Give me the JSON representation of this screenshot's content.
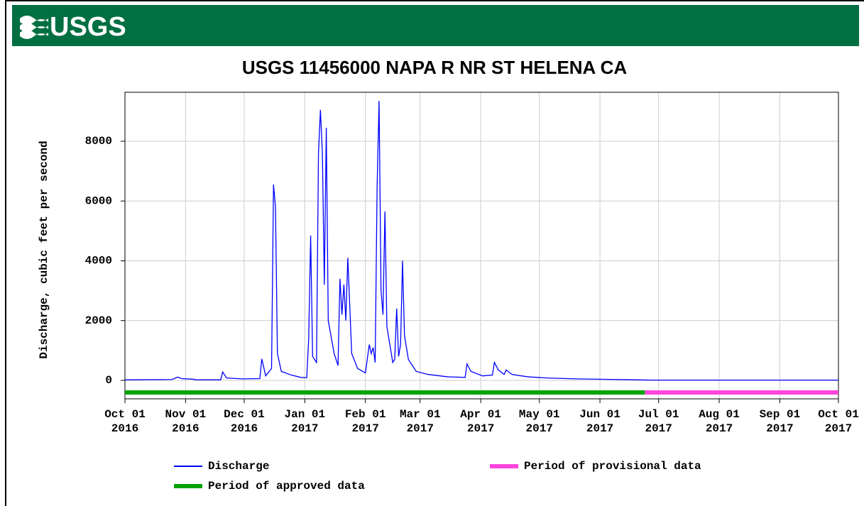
{
  "header": {
    "logo_text": "USGS"
  },
  "chart_data": {
    "type": "line",
    "title": "USGS 11456000 NAPA R NR ST HELENA CA",
    "ylabel": "Discharge, cubic feet per second",
    "xlim": [
      "2016-10-01",
      "2017-10-01"
    ],
    "ylim": [
      -617,
      9638
    ],
    "yticks": [
      0,
      2000,
      4000,
      6000,
      8000
    ],
    "xticks": [
      {
        "value": "2016-10-01",
        "label": "Oct 01\n2016"
      },
      {
        "value": "2016-11-01",
        "label": "Nov 01\n2016"
      },
      {
        "value": "2016-12-01",
        "label": "Dec 01\n2016"
      },
      {
        "value": "2017-01-01",
        "label": "Jan 01\n2017"
      },
      {
        "value": "2017-02-01",
        "label": "Feb 01\n2017"
      },
      {
        "value": "2017-03-01",
        "label": "Mar 01\n2017"
      },
      {
        "value": "2017-04-01",
        "label": "Apr 01\n2017"
      },
      {
        "value": "2017-05-01",
        "label": "May 01\n2017"
      },
      {
        "value": "2017-06-01",
        "label": "Jun 01\n2017"
      },
      {
        "value": "2017-07-01",
        "label": "Jul 01\n2017"
      },
      {
        "value": "2017-08-01",
        "label": "Aug 01\n2017"
      },
      {
        "value": "2017-09-01",
        "label": "Sep 01\n2017"
      },
      {
        "value": "2017-10-01",
        "label": "Oct 01\n2017"
      }
    ],
    "grid": true,
    "x": [
      "2016-10-01",
      "2016-10-25",
      "2016-10-28",
      "2016-10-30",
      "2016-11-05",
      "2016-11-06",
      "2016-11-19",
      "2016-11-20",
      "2016-11-22",
      "2016-11-30",
      "2016-12-09",
      "2016-12-10",
      "2016-12-12",
      "2016-12-15",
      "2016-12-16",
      "2016-12-17",
      "2016-12-18",
      "2016-12-20",
      "2016-12-25",
      "2016-12-30",
      "2017-01-02",
      "2017-01-03",
      "2017-01-04",
      "2017-01-05",
      "2017-01-07",
      "2017-01-08",
      "2017-01-09",
      "2017-01-10",
      "2017-01-11",
      "2017-01-12",
      "2017-01-13",
      "2017-01-16",
      "2017-01-18",
      "2017-01-19",
      "2017-01-20",
      "2017-01-21",
      "2017-01-22",
      "2017-01-23",
      "2017-01-25",
      "2017-01-28",
      "2017-02-01",
      "2017-02-03",
      "2017-02-04",
      "2017-02-05",
      "2017-02-06",
      "2017-02-07",
      "2017-02-08",
      "2017-02-09",
      "2017-02-10",
      "2017-02-11",
      "2017-02-12",
      "2017-02-15",
      "2017-02-16",
      "2017-02-17",
      "2017-02-18",
      "2017-02-19",
      "2017-02-20",
      "2017-02-21",
      "2017-02-23",
      "2017-02-27",
      "2017-03-05",
      "2017-03-15",
      "2017-03-24",
      "2017-03-25",
      "2017-03-27",
      "2017-04-02",
      "2017-04-07",
      "2017-04-08",
      "2017-04-10",
      "2017-04-13",
      "2017-04-14",
      "2017-04-17",
      "2017-04-25",
      "2017-05-05",
      "2017-05-20",
      "2017-06-10",
      "2017-06-28",
      "2017-10-01"
    ],
    "series": [
      {
        "name": "Discharge",
        "color": "#0000ff",
        "values": [
          20,
          30,
          110,
          60,
          40,
          20,
          20,
          280,
          80,
          50,
          60,
          720,
          150,
          400,
          6550,
          5800,
          900,
          300,
          180,
          100,
          90,
          1400,
          4850,
          800,
          600,
          7600,
          9050,
          7600,
          3200,
          8450,
          2000,
          900,
          500,
          3400,
          2200,
          3200,
          2000,
          4100,
          900,
          400,
          250,
          1200,
          900,
          1100,
          600,
          6500,
          9350,
          3000,
          2200,
          5650,
          1800,
          600,
          700,
          2400,
          800,
          1200,
          4000,
          1500,
          700,
          300,
          200,
          120,
          100,
          550,
          300,
          150,
          180,
          600,
          350,
          200,
          350,
          200,
          120,
          80,
          50,
          30,
          10,
          10
        ]
      }
    ],
    "periods": [
      {
        "name": "Period of approved data",
        "color": "#00a300",
        "start": "2016-10-01",
        "end": "2017-06-24"
      },
      {
        "name": "Period of provisional data",
        "color": "#ff44dd",
        "start": "2017-06-24",
        "end": "2017-10-01"
      }
    ]
  }
}
